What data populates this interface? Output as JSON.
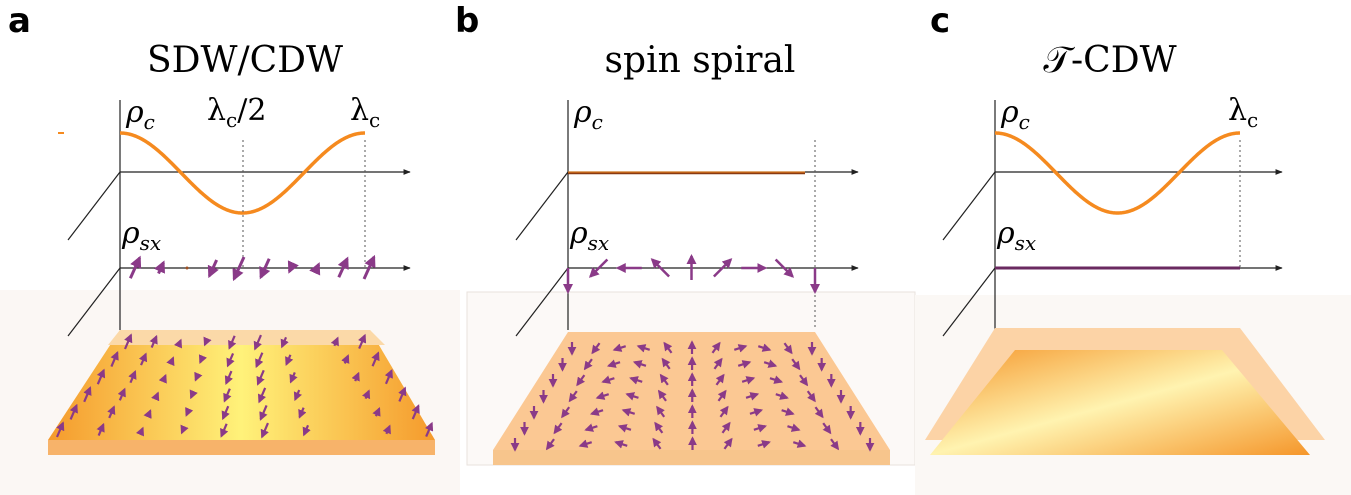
{
  "panels": [
    {
      "label": "a",
      "title": "SDW/CDW",
      "axis_top": {
        "symbol": "ρ",
        "sub": "c"
      },
      "axis_bottom": {
        "symbol": "ρ",
        "sub": "sx"
      },
      "marks": [
        {
          "symbol": "λ",
          "sub": "c",
          "suffix": "/2"
        },
        {
          "symbol": "λ",
          "sub": "c"
        }
      ]
    },
    {
      "label": "b",
      "title": "spin spiral",
      "axis_top": {
        "symbol": "ρ",
        "sub": "c"
      },
      "axis_bottom": {
        "symbol": "ρ",
        "sub": "sx"
      }
    },
    {
      "label": "c",
      "title": "𝒯-CDW",
      "axis_top": {
        "symbol": "ρ",
        "sub": "c"
      },
      "axis_bottom": {
        "symbol": "ρ",
        "sub": "sx"
      },
      "marks": [
        {
          "symbol": "λ",
          "sub": "c"
        }
      ]
    }
  ]
}
